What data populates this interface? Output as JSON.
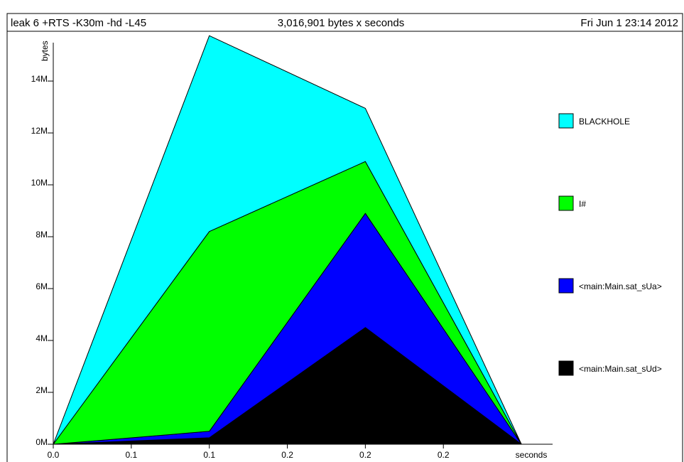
{
  "header": {
    "program": "leak 6 +RTS -K30m -hd -L45",
    "total": "3,016,901 bytes x seconds",
    "date": "Fri Jun  1 23:14 2012"
  },
  "chart_data": {
    "type": "area",
    "stacked": true,
    "ylabel": "bytes",
    "xlabel": "seconds",
    "x": [
      0.0,
      0.1,
      0.2,
      0.3
    ],
    "x_tick_labels": [
      "0.0",
      "0.1",
      "0.1",
      "0.2",
      "0.2",
      "0.2"
    ],
    "x_tick_values": [
      0.0,
      0.05,
      0.1,
      0.15,
      0.2,
      0.25
    ],
    "y_tick_labels": [
      "0M",
      "2M",
      "4M",
      "6M",
      "8M",
      "10M",
      "12M",
      "14M"
    ],
    "y_tick_values": [
      0,
      2000000,
      4000000,
      6000000,
      8000000,
      10000000,
      12000000,
      14000000
    ],
    "xlim": [
      0.0,
      0.32
    ],
    "ylim": [
      0,
      15700000
    ],
    "legend_position": "right",
    "grid": false,
    "series": [
      {
        "name": "<main:Main.sat_sUd>",
        "color": "#000000",
        "values": [
          0,
          250000,
          4500000,
          0
        ]
      },
      {
        "name": "<main:Main.sat_sUa>",
        "color": "#0000ff",
        "values": [
          0,
          250000,
          4400000,
          0
        ]
      },
      {
        "name": "I#",
        "color": "#00ff00",
        "values": [
          0,
          7700000,
          2000000,
          0
        ]
      },
      {
        "name": "BLACKHOLE",
        "color": "#00ffff",
        "values": [
          0,
          7550000,
          2050000,
          0
        ]
      }
    ]
  }
}
